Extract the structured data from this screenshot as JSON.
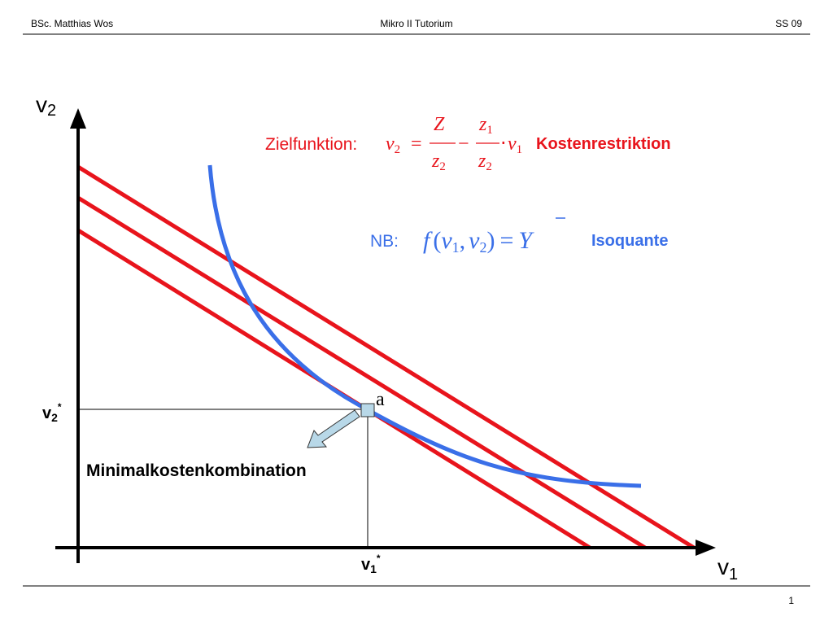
{
  "header": {
    "left": "BSc. Matthias Wos",
    "center": "Mikro II Tutorium",
    "right": "SS 09"
  },
  "footer": {
    "page": "1"
  },
  "axes": {
    "y_label": {
      "base": "v",
      "sub": "2"
    },
    "x_label": {
      "base": "v",
      "sub": "1"
    }
  },
  "markers": {
    "v2_star": {
      "base": "v",
      "sub": "2",
      "sup": "*"
    },
    "v1_star": {
      "base": "v",
      "sub": "1",
      "sup": "*"
    }
  },
  "objective": {
    "label": "Zielfunktion:",
    "lhs": {
      "base": "v",
      "sub": "2"
    },
    "eq": "=",
    "frac1": {
      "num": "Z",
      "den": {
        "base": "z",
        "sub": "2"
      }
    },
    "minus": "−",
    "frac2": {
      "num": {
        "base": "z",
        "sub": "1"
      },
      "den": {
        "base": "z",
        "sub": "2"
      }
    },
    "dot": "⋅",
    "rhs": {
      "base": "v",
      "sub": "1"
    },
    "name": "Kostenrestriktion"
  },
  "constraint": {
    "label": "NB:",
    "func": "f",
    "open": "(",
    "arg1": {
      "base": "v",
      "sub": "1"
    },
    "comma": ",",
    "arg2": {
      "base": "v",
      "sub": "2"
    },
    "close": ")",
    "eq": "=",
    "rhs": "Y",
    "name": "Isoquante"
  },
  "point_label": "a",
  "annotation": "Minimalkostenkombination"
}
